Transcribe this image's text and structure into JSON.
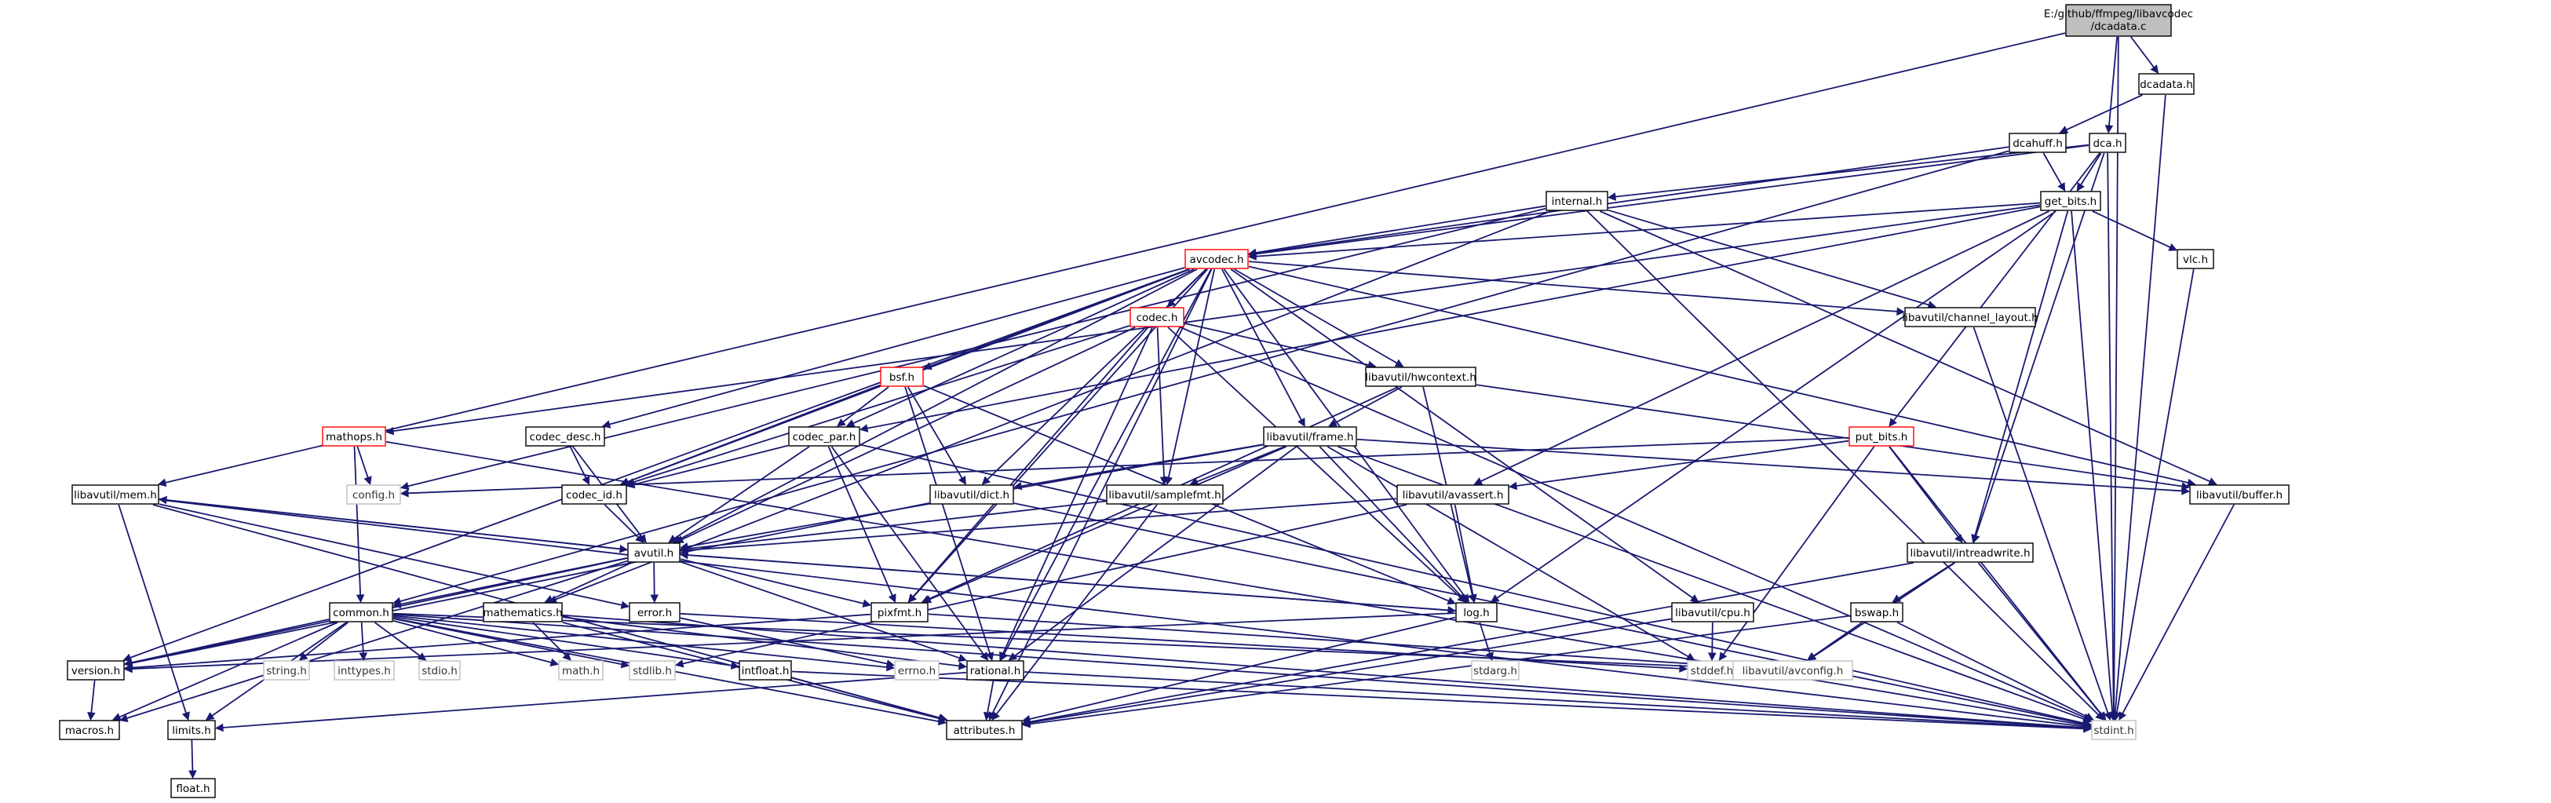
{
  "graph": {
    "root": {
      "line1": "E:/github/ffmpeg/libavcodec",
      "line2": "/dcadata.c"
    },
    "nodes": {
      "dcadata_h": "dcadata.h",
      "dcahuff_h": "dcahuff.h",
      "dca_h": "dca.h",
      "internal_h": "internal.h",
      "get_bits_h": "get_bits.h",
      "avcodec_h": "avcodec.h",
      "vlc_h": "vlc.h",
      "codec_h": "codec.h",
      "channel_layout_h": "libavutil/channel_layout.h",
      "bsf_h": "bsf.h",
      "hwcontext_h": "libavutil/hwcontext.h",
      "mathops_h": "mathops.h",
      "codec_desc_h": "codec_desc.h",
      "codec_par_h": "codec_par.h",
      "frame_h": "libavutil/frame.h",
      "put_bits_h": "put_bits.h",
      "config_h": "config.h",
      "codec_id_h": "codec_id.h",
      "mem_h": "libavutil/mem.h",
      "dict_h": "libavutil/dict.h",
      "samplefmt_h": "libavutil/samplefmt.h",
      "avassert_h": "libavutil/avassert.h",
      "buffer_h": "libavutil/buffer.h",
      "avutil_h": "avutil.h",
      "intreadwrite_h": "libavutil/intreadwrite.h",
      "common_h": "common.h",
      "mathematics_h": "mathematics.h",
      "error_h": "error.h",
      "pixfmt_h": "pixfmt.h",
      "log_h": "log.h",
      "cpu_h": "libavutil/cpu.h",
      "bswap_h": "bswap.h",
      "version_h": "version.h",
      "string_h": "string.h",
      "inttypes_h": "inttypes.h",
      "stdio_h": "stdio.h",
      "math_h": "math.h",
      "stdlib_h": "stdlib.h",
      "intfloat_h": "intfloat.h",
      "errno_h": "errno.h",
      "rational_h": "rational.h",
      "stdarg_h": "stdarg.h",
      "stddef_h": "stddef.h",
      "avconfig_h": "libavutil/avconfig.h",
      "macros_h": "macros.h",
      "limits_h": "limits.h",
      "attributes_h": "attributes.h",
      "stdint_h": "stdint.h",
      "float_h": "float.h"
    },
    "colors": {
      "edge": "#191970",
      "root_fill": "#bfbfbf",
      "highlight_border": "#ff0000",
      "system_border": "#bfbfbf"
    }
  }
}
